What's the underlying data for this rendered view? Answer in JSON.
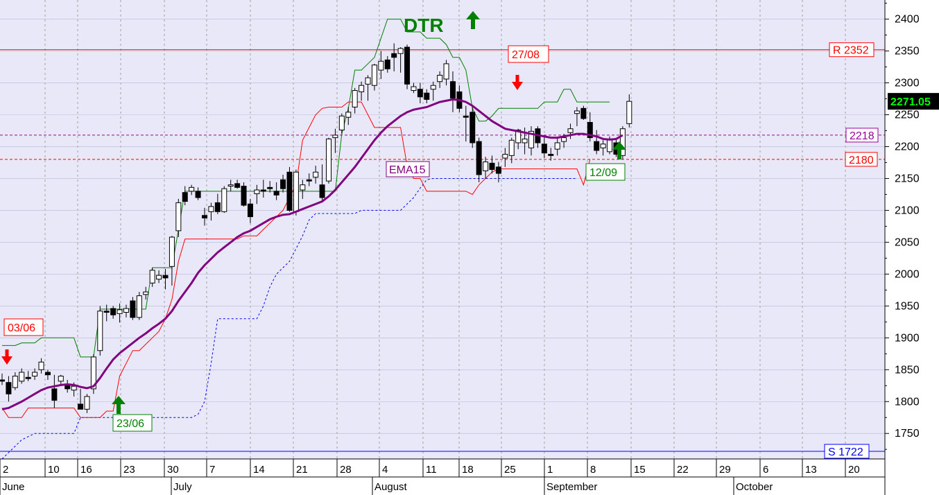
{
  "chart_data": {
    "type": "candlestick",
    "y_range": [
      1710,
      2430
    ],
    "y_ticks": [
      1750,
      1800,
      1850,
      1900,
      1950,
      2000,
      2050,
      2100,
      2150,
      2200,
      2250,
      2300,
      2350,
      2400
    ],
    "x_day_labels": [
      "2",
      "10",
      "16",
      "23",
      "30",
      "7",
      "14",
      "21",
      "28",
      "4",
      "11",
      "18",
      "25",
      "1",
      "8",
      "15",
      "22",
      "29",
      "6",
      "13",
      "20"
    ],
    "month_labels": [
      "June",
      "July",
      "August",
      "September",
      "October"
    ],
    "candles": [
      [
        1834,
        1844,
        1826,
        1832
      ],
      [
        1830,
        1840,
        1800,
        1812
      ],
      [
        1822,
        1846,
        1818,
        1840
      ],
      [
        1832,
        1852,
        1828,
        1846
      ],
      [
        1838,
        1848,
        1832,
        1836
      ],
      [
        1840,
        1852,
        1834,
        1846
      ],
      [
        1850,
        1868,
        1844,
        1862
      ],
      [
        1846,
        1850,
        1834,
        1842
      ],
      [
        1820,
        1842,
        1790,
        1802
      ],
      [
        1832,
        1842,
        1826,
        1840
      ],
      [
        1826,
        1834,
        1814,
        1820
      ],
      [
        1818,
        1830,
        1808,
        1824
      ],
      [
        1796,
        1820,
        1790,
        1788
      ],
      [
        1788,
        1812,
        1782,
        1808
      ],
      [
        1820,
        1874,
        1812,
        1870
      ],
      [
        1880,
        1950,
        1872,
        1942
      ],
      [
        1942,
        1952,
        1926,
        1940
      ],
      [
        1946,
        1950,
        1930,
        1936
      ],
      [
        1938,
        1954,
        1924,
        1944
      ],
      [
        1940,
        1952,
        1932,
        1946
      ],
      [
        1958,
        1964,
        1928,
        1932
      ],
      [
        1932,
        1972,
        1928,
        1966
      ],
      [
        1968,
        1980,
        1960,
        1972
      ],
      [
        1986,
        2010,
        1980,
        2006
      ],
      [
        1992,
        2006,
        1986,
        1998
      ],
      [
        1998,
        2008,
        1976,
        1994
      ],
      [
        2012,
        2060,
        1982,
        2058
      ],
      [
        2068,
        2118,
        2058,
        2112
      ],
      [
        2128,
        2138,
        2108,
        2114
      ],
      [
        2130,
        2140,
        2124,
        2136
      ],
      [
        2130,
        2136,
        2116,
        2120
      ],
      [
        2092,
        2104,
        2076,
        2088
      ],
      [
        2098,
        2112,
        2084,
        2106
      ],
      [
        2112,
        2126,
        2094,
        2098
      ],
      [
        2098,
        2138,
        2096,
        2134
      ],
      [
        2138,
        2148,
        2130,
        2140
      ],
      [
        2142,
        2148,
        2134,
        2136
      ],
      [
        2138,
        2144,
        2106,
        2108
      ],
      [
        2110,
        2118,
        2080,
        2090
      ],
      [
        2126,
        2140,
        2110,
        2132
      ],
      [
        2132,
        2148,
        2120,
        2130
      ],
      [
        2136,
        2146,
        2128,
        2134
      ],
      [
        2130,
        2144,
        2116,
        2124
      ],
      [
        2148,
        2156,
        2128,
        2134
      ],
      [
        2160,
        2168,
        2098,
        2100
      ],
      [
        2098,
        2164,
        2092,
        2160
      ],
      [
        2132,
        2148,
        2118,
        2140
      ],
      [
        2148,
        2158,
        2138,
        2146
      ],
      [
        2152,
        2170,
        2142,
        2160
      ],
      [
        2140,
        2172,
        2114,
        2120
      ],
      [
        2146,
        2214,
        2142,
        2212
      ],
      [
        2214,
        2228,
        2190,
        2218
      ],
      [
        2226,
        2252,
        2220,
        2248
      ],
      [
        2246,
        2262,
        2234,
        2254
      ],
      [
        2262,
        2292,
        2252,
        2288
      ],
      [
        2286,
        2302,
        2272,
        2296
      ],
      [
        2298,
        2312,
        2272,
        2308
      ],
      [
        2296,
        2330,
        2288,
        2328
      ],
      [
        2320,
        2350,
        2306,
        2334
      ],
      [
        2336,
        2342,
        2316,
        2322
      ],
      [
        2346,
        2362,
        2318,
        2340
      ],
      [
        2346,
        2356,
        2316,
        2354
      ],
      [
        2356,
        2360,
        2290,
        2298
      ],
      [
        2288,
        2300,
        2284,
        2294
      ],
      [
        2290,
        2300,
        2268,
        2278
      ],
      [
        2284,
        2290,
        2268,
        2274
      ],
      [
        2290,
        2302,
        2272,
        2296
      ],
      [
        2302,
        2318,
        2292,
        2312
      ],
      [
        2306,
        2336,
        2296,
        2330
      ],
      [
        2302,
        2318,
        2254,
        2276
      ],
      [
        2286,
        2296,
        2254,
        2260
      ],
      [
        2248,
        2264,
        2208,
        2246
      ],
      [
        2254,
        2264,
        2198,
        2206
      ],
      [
        2208,
        2214,
        2144,
        2156
      ],
      [
        2162,
        2184,
        2150,
        2176
      ],
      [
        2174,
        2186,
        2158,
        2164
      ],
      [
        2168,
        2176,
        2144,
        2158
      ],
      [
        2182,
        2198,
        2168,
        2188
      ],
      [
        2186,
        2214,
        2174,
        2210
      ],
      [
        2206,
        2228,
        2196,
        2226
      ],
      [
        2206,
        2230,
        2188,
        2212
      ],
      [
        2198,
        2232,
        2186,
        2224
      ],
      [
        2228,
        2232,
        2198,
        2206
      ],
      [
        2204,
        2218,
        2182,
        2190
      ],
      [
        2188,
        2198,
        2178,
        2186
      ],
      [
        2196,
        2214,
        2186,
        2206
      ],
      [
        2208,
        2220,
        2198,
        2214
      ],
      [
        2222,
        2236,
        2212,
        2228
      ],
      [
        2252,
        2262,
        2232,
        2256
      ],
      [
        2260,
        2264,
        2242,
        2244
      ],
      [
        2238,
        2254,
        2208,
        2214
      ],
      [
        2208,
        2226,
        2188,
        2194
      ],
      [
        2198,
        2210,
        2186,
        2204
      ],
      [
        2192,
        2216,
        2188,
        2212
      ],
      [
        2206,
        2212,
        2184,
        2188
      ],
      [
        2186,
        2232,
        2180,
        2228
      ],
      [
        2236,
        2282,
        2230,
        2271
      ]
    ],
    "ema15_label": "EMA15",
    "ema15": [
      1788,
      1790,
      1795,
      1800,
      1806,
      1812,
      1818,
      1822,
      1824,
      1826,
      1827,
      1826,
      1823,
      1821,
      1824,
      1837,
      1852,
      1866,
      1876,
      1884,
      1892,
      1900,
      1907,
      1915,
      1922,
      1930,
      1942,
      1958,
      1972,
      1986,
      2002,
      2014,
      2024,
      2034,
      2042,
      2050,
      2058,
      2064,
      2068,
      2074,
      2080,
      2086,
      2090,
      2093,
      2094,
      2098,
      2102,
      2106,
      2110,
      2114,
      2122,
      2132,
      2144,
      2156,
      2168,
      2182,
      2196,
      2210,
      2222,
      2232,
      2240,
      2248,
      2254,
      2258,
      2260,
      2262,
      2266,
      2270,
      2272,
      2274,
      2273,
      2270,
      2264,
      2256,
      2248,
      2240,
      2234,
      2228,
      2226,
      2224,
      2222,
      2220,
      2218,
      2216,
      2214,
      2214,
      2216,
      2218,
      2220,
      2220,
      2218,
      2216,
      2212,
      2211,
      2212,
      2218
    ],
    "ema15_start_index": 0,
    "green_band": [
      1888,
      1888,
      1888,
      1892,
      1892,
      1892,
      1900,
      1900,
      1900,
      1900,
      1900,
      1900,
      1870,
      1870,
      1870,
      1945,
      1945,
      1945,
      1945,
      1945,
      1945,
      1945,
      1945,
      2010,
      2010,
      2010,
      2010,
      2070,
      2130,
      2130,
      2130,
      2130,
      2130,
      2130,
      2130,
      2130,
      2130,
      2130,
      2130,
      2130,
      2130,
      2130,
      2130,
      2130,
      2130,
      2130,
      2130,
      2130,
      2130,
      2130,
      2130,
      2130,
      2220,
      2260,
      2320,
      2320,
      2330,
      2340,
      2370,
      2400,
      2400,
      2400,
      2380,
      2380,
      2380,
      2370,
      2370,
      2370,
      2360,
      2340,
      2340,
      2320,
      2260,
      2240,
      2240,
      2248,
      2260,
      2260,
      2260,
      2260,
      2260,
      2260,
      2260,
      2270,
      2270,
      2270,
      2290,
      2290,
      2270,
      2270,
      2270,
      2270,
      2270,
      2270
    ],
    "red_band": [
      1790,
      1775,
      1775,
      1775,
      1790,
      1790,
      1790,
      1790,
      1790,
      1790,
      1790,
      1790,
      1775,
      1775,
      1775,
      1775,
      1785,
      1785,
      1840,
      1860,
      1880,
      1880,
      1890,
      1900,
      1910,
      1930,
      1960,
      2020,
      2055,
      2055,
      2055,
      2055,
      2055,
      2055,
      2055,
      2055,
      2055,
      2060,
      2060,
      2060,
      2070,
      2080,
      2090,
      2100,
      2120,
      2140,
      2210,
      2230,
      2250,
      2260,
      2262,
      2262,
      2262,
      2270,
      2270,
      2270,
      2250,
      2230,
      2230,
      2230,
      2230,
      2230,
      2170,
      2150,
      2150,
      2130,
      2130,
      2130,
      2130,
      2130,
      2130,
      2130,
      2125,
      2140,
      2150,
      2160,
      2165,
      2165,
      2165,
      2165,
      2165,
      2165,
      2165,
      2165,
      2165,
      2165,
      2165,
      2165,
      2165,
      2140,
      2180
    ],
    "red_band_start_index": 0,
    "blue_dotted": [
      1710,
      1720,
      1730,
      1740,
      1745,
      1750,
      1750,
      1750,
      1750,
      1750,
      1750,
      1750,
      1775,
      1775,
      1775,
      1775,
      1775,
      1775,
      1775,
      1775,
      1775,
      1775,
      1775,
      1775,
      1775,
      1775,
      1775,
      1775,
      1775,
      1775,
      1780,
      1800,
      1860,
      1930,
      1930,
      1930,
      1930,
      1930,
      1930,
      1930,
      1950,
      1980,
      2000,
      2010,
      2020,
      2040,
      2060,
      2085,
      2095,
      2095,
      2095,
      2095,
      2095,
      2095,
      2095,
      2100,
      2100,
      2100,
      2100,
      2100,
      2100,
      2100,
      2110,
      2120,
      2135,
      2148,
      2150,
      2150,
      2150,
      2150,
      2150,
      2150,
      2150,
      2150,
      2150,
      2150,
      2150,
      2150,
      2150,
      2150,
      2150,
      2150,
      2150,
      2150,
      2150,
      2150,
      2150,
      2150,
      2150
    ],
    "levels": [
      {
        "value": 2352,
        "label": "R 2352",
        "color": "#ff0000",
        "style": "solid"
      },
      {
        "value": 2218,
        "label": "2218",
        "color": "#990099",
        "style": "dashed"
      },
      {
        "value": 2180,
        "label": "2180",
        "color": "#ff0000",
        "style": "dashed"
      },
      {
        "value": 1722,
        "label": "S 1722",
        "color": "#0000ff",
        "style": "solid"
      }
    ],
    "last_price_label": "2271.05",
    "annotations": [
      {
        "text": "03/06",
        "color": "#ff0000"
      },
      {
        "text": "23/06",
        "color": "#008000"
      },
      {
        "text": "27/08",
        "color": "#ff0000"
      },
      {
        "text": "12/09",
        "color": "#008000"
      },
      {
        "text": "DTR",
        "color": "#008000"
      }
    ],
    "arrows": [
      {
        "dir": "down",
        "color": "#ff0000"
      },
      {
        "dir": "up",
        "color": "#008000"
      },
      {
        "dir": "up",
        "color": "#008000"
      },
      {
        "dir": "down",
        "color": "#ff0000"
      },
      {
        "dir": "up",
        "color": "#008000"
      }
    ]
  }
}
